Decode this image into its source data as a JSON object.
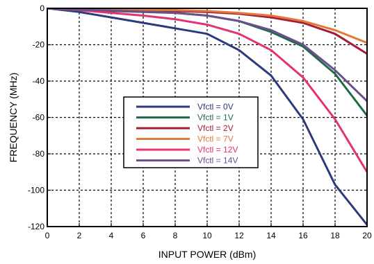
{
  "chart_data": {
    "type": "line",
    "xlabel": "INPUT POWER (dBm)",
    "ylabel": "FREQUENCY  (MHz)",
    "xlim": [
      0,
      20
    ],
    "ylim": [
      -120,
      0
    ],
    "xticks": [
      0,
      2,
      4,
      6,
      8,
      10,
      12,
      14,
      16,
      18,
      20
    ],
    "yticks": [
      0,
      -20,
      -40,
      -60,
      -80,
      -100,
      -120
    ],
    "grid": true,
    "legend_position": "center",
    "series": [
      {
        "name": "Vfctl = 0V",
        "color": "#2b3a7e",
        "x": [
          0,
          2,
          4,
          6,
          8,
          10,
          12,
          14,
          16,
          18,
          20
        ],
        "y": [
          0,
          -2,
          -5,
          -8,
          -11,
          -14,
          -23,
          -37,
          -61,
          -97,
          -119
        ]
      },
      {
        "name": "Vfctl = 1V",
        "color": "#1f6b43",
        "x": [
          0,
          2,
          4,
          6,
          8,
          10,
          12,
          14,
          16,
          18,
          20
        ],
        "y": [
          0,
          -1,
          -1.5,
          -2,
          -2.5,
          -4,
          -7,
          -13,
          -21,
          -36,
          -59
        ]
      },
      {
        "name": "Vfctl = 2V",
        "color": "#a51c35",
        "x": [
          0,
          2,
          4,
          6,
          8,
          10,
          12,
          14,
          16,
          18,
          20
        ],
        "y": [
          0,
          -0.5,
          -1,
          -1,
          -1.5,
          -2,
          -3,
          -5,
          -8,
          -14,
          -25
        ]
      },
      {
        "name": "Vfctl = 7V",
        "color": "#e2793b",
        "x": [
          0,
          2,
          4,
          6,
          8,
          10,
          12,
          14,
          16,
          18,
          20
        ],
        "y": [
          0,
          -0.3,
          -0.5,
          -0.8,
          -1,
          -1.5,
          -2.5,
          -4,
          -7,
          -12,
          -19
        ]
      },
      {
        "name": "Vfctl = 12V",
        "color": "#e33275",
        "x": [
          0,
          2,
          4,
          6,
          8,
          10,
          12,
          14,
          16,
          18,
          20
        ],
        "y": [
          0,
          -1,
          -2.5,
          -4,
          -6,
          -9,
          -14,
          -23,
          -38,
          -61,
          -90
        ]
      },
      {
        "name": "Vfctl = 14V",
        "color": "#6b4f8f",
        "x": [
          0,
          2,
          4,
          6,
          8,
          10,
          12,
          14,
          16,
          18,
          20
        ],
        "y": [
          0,
          -0.8,
          -1.2,
          -1.8,
          -2.5,
          -4,
          -7,
          -12,
          -20,
          -34,
          -51
        ]
      }
    ]
  }
}
